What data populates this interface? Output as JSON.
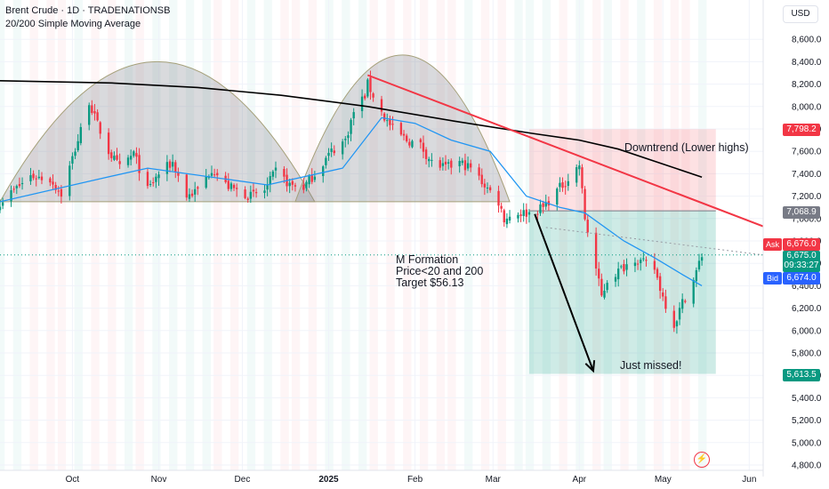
{
  "header": {
    "title": "Brent Crude · 1D · TRADENATIONSB",
    "indicator": "20/200 Simple Moving Average"
  },
  "currency_button": "USD",
  "annotations": {
    "downtrend": "Downtrend (Lower highs)",
    "m_formation": "M Formation",
    "price_condition": "Price<20 and 200",
    "target": "Target $56.13",
    "just_missed": "Just missed!"
  },
  "price_labels": {
    "stop": "7,798.2",
    "entry": "7,068.9",
    "ask_tag": "Ask",
    "ask": "6,676.0",
    "last": "6,675.0",
    "countdown": "09:33:27",
    "bid_tag": "Bid",
    "bid": "6,674.0",
    "target": "5,613.5"
  },
  "colors": {
    "up": "#089981",
    "down": "#f23645",
    "ma20": "#2196f3",
    "ma200": "#000000",
    "trendline": "#f23645",
    "ask_bg": "#f23645",
    "bid_bg": "#2962ff",
    "stop_bg": "#f23645",
    "target_bg": "#089981",
    "entry_bg": "#787b86"
  },
  "chart_data": {
    "type": "candlestick",
    "title": "Brent Crude · 1D · TRADENATIONSB",
    "y_axis": {
      "ticks": [
        "4,800.0",
        "5,000.0",
        "5,200.0",
        "5,400.0",
        "5,600.0",
        "5,800.0",
        "6,000.0",
        "6,200.0",
        "6,400.0",
        "6,600.0",
        "6,800.0",
        "7,000.0",
        "7,200.0",
        "7,400.0",
        "7,600.0",
        "7,800.0",
        "8,000.0",
        "8,200.0",
        "8,400.0",
        "8,600.0"
      ],
      "range": [
        4780,
        8700
      ]
    },
    "x_axis": {
      "ticks": [
        "Oct",
        "Nov",
        "Dec",
        "2025",
        "Feb",
        "Mar",
        "Apr",
        "May",
        "Jun"
      ],
      "range": [
        "2024-09-05",
        "2025-06-06"
      ]
    },
    "close_path": [
      [
        "2024-09-05",
        7150
      ],
      [
        "2024-09-10",
        7250
      ],
      [
        "2024-09-16",
        7380
      ],
      [
        "2024-09-23",
        7350
      ],
      [
        "2024-09-27",
        7220
      ],
      [
        "2024-10-03",
        7700
      ],
      [
        "2024-10-07",
        8050
      ],
      [
        "2024-10-09",
        7900
      ],
      [
        "2024-10-14",
        7600
      ],
      [
        "2024-10-18",
        7450
      ],
      [
        "2024-10-23",
        7580
      ],
      [
        "2024-10-28",
        7250
      ],
      [
        "2024-11-01",
        7400
      ],
      [
        "2024-11-06",
        7500
      ],
      [
        "2024-11-11",
        7200
      ],
      [
        "2024-11-15",
        7250
      ],
      [
        "2024-11-20",
        7450
      ],
      [
        "2024-11-25",
        7300
      ],
      [
        "2024-11-29",
        7250
      ],
      [
        "2024-12-04",
        7200
      ],
      [
        "2024-12-09",
        7250
      ],
      [
        "2024-12-13",
        7420
      ],
      [
        "2024-12-18",
        7300
      ],
      [
        "2024-12-23",
        7280
      ],
      [
        "2024-12-27",
        7400
      ],
      [
        "2025-01-02",
        7600
      ],
      [
        "2025-01-07",
        7700
      ],
      [
        "2025-01-10",
        7950
      ],
      [
        "2025-01-14",
        8100
      ],
      [
        "2025-01-15",
        8200
      ],
      [
        "2025-01-17",
        8100
      ],
      [
        "2025-01-21",
        7900
      ],
      [
        "2025-01-24",
        7800
      ],
      [
        "2025-01-29",
        7700
      ],
      [
        "2025-02-03",
        7650
      ],
      [
        "2025-02-07",
        7500
      ],
      [
        "2025-02-12",
        7450
      ],
      [
        "2025-02-17",
        7500
      ],
      [
        "2025-02-21",
        7450
      ],
      [
        "2025-02-26",
        7300
      ],
      [
        "2025-03-03",
        7150
      ],
      [
        "2025-03-05",
        7000
      ],
      [
        "2025-03-10",
        7050
      ],
      [
        "2025-03-14",
        7050
      ],
      [
        "2025-03-19",
        7100
      ],
      [
        "2025-03-24",
        7250
      ],
      [
        "2025-03-28",
        7350
      ],
      [
        "2025-04-01",
        7480
      ],
      [
        "2025-04-03",
        7000
      ],
      [
        "2025-04-07",
        6550
      ],
      [
        "2025-04-09",
        6300
      ],
      [
        "2025-04-11",
        6450
      ],
      [
        "2025-04-16",
        6550
      ],
      [
        "2025-04-21",
        6650
      ],
      [
        "2025-04-24",
        6600
      ],
      [
        "2025-04-28",
        6550
      ],
      [
        "2025-05-01",
        6300
      ],
      [
        "2025-05-05",
        6050
      ],
      [
        "2025-05-08",
        6250
      ],
      [
        "2025-05-12",
        6450
      ],
      [
        "2025-05-15",
        6675
      ]
    ],
    "series": [
      {
        "name": "20/200 Simple Moving Average (20)",
        "x": [
          "2024-09-05",
          "2024-10-10",
          "2024-10-28",
          "2024-12-10",
          "2025-01-06",
          "2025-01-20",
          "2025-02-01",
          "2025-02-14",
          "2025-02-28",
          "2025-03-13",
          "2025-03-25",
          "2025-04-03",
          "2025-04-17",
          "2025-04-28",
          "2025-05-08",
          "2025-05-15"
        ],
        "values": [
          7150,
          7350,
          7450,
          7300,
          7450,
          7900,
          7850,
          7700,
          7600,
          7200,
          7100,
          7050,
          6800,
          6650,
          6500,
          6400
        ]
      },
      {
        "name": "20/200 Simple Moving Average (200)",
        "x": [
          "2024-09-05",
          "2024-10-15",
          "2024-11-15",
          "2024-12-15",
          "2025-01-15",
          "2025-02-15",
          "2025-03-15",
          "2025-04-01",
          "2025-04-15",
          "2025-05-15"
        ],
        "values": [
          8230,
          8210,
          8170,
          8100,
          8000,
          7870,
          7760,
          7700,
          7620,
          7370
        ]
      },
      {
        "name": "Downtrend trendline",
        "x": [
          "2025-01-15",
          "2025-06-06"
        ],
        "values": [
          8280,
          6930
        ]
      }
    ],
    "position": {
      "entry": 7068.9,
      "stop": 7798.2,
      "target": 5613.5,
      "start": "2025-03-14",
      "end": "2025-05-20"
    },
    "m_formation_arrow": {
      "from": [
        "2025-03-16",
        7040
      ],
      "to": [
        "2025-04-06",
        5640
      ]
    },
    "arcs": [
      {
        "start": [
          "2024-09-05",
          7150
        ],
        "end": [
          "2024-12-27",
          7150
        ],
        "peak": 8400
      },
      {
        "start": [
          "2024-12-20",
          7150
        ],
        "end": [
          "2025-03-07",
          7150
        ],
        "peak": 8460
      }
    ],
    "current": {
      "ask": 6676.0,
      "last": 6675.0,
      "bid": 6674.0
    },
    "grid": true
  }
}
